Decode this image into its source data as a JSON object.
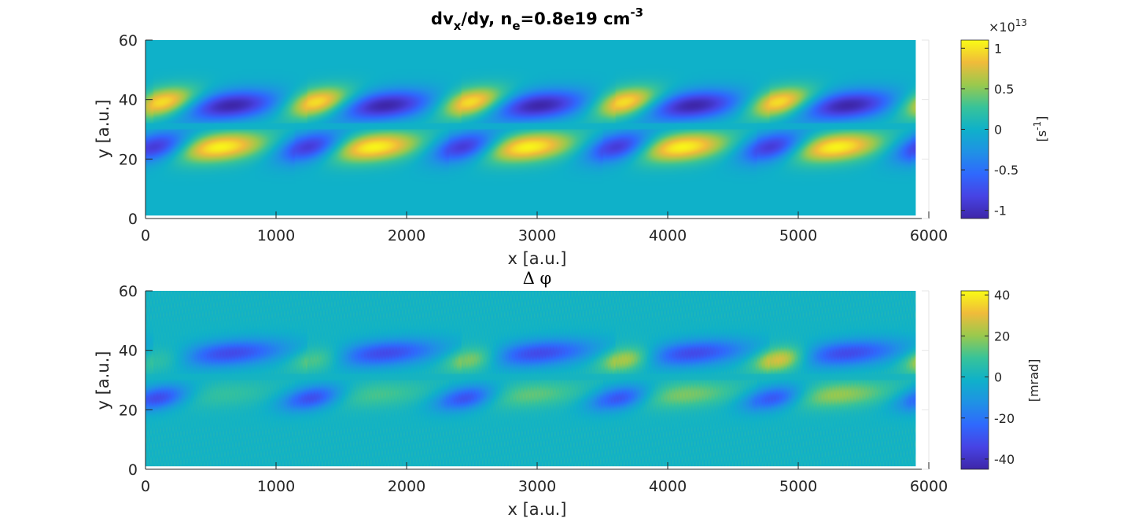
{
  "chart_data": [
    {
      "type": "heatmap",
      "title": "dv_x/dy, n_e=0.8e19 cm^-3",
      "title_parts": {
        "t1": "dv",
        "t2": "x",
        "t3": "/dy, n",
        "t4": "e",
        "t5": "=0.8e19 cm",
        "t6": "-3"
      },
      "xlabel": "x [a.u.]",
      "ylabel": "y [a.u.]",
      "xlim": [
        0,
        6000
      ],
      "ylim": [
        0,
        60
      ],
      "x_ticks": [
        "0",
        "1000",
        "2000",
        "3000",
        "4000",
        "5000",
        "6000"
      ],
      "y_ticks": [
        "0",
        "20",
        "40",
        "60"
      ],
      "data_x_extent": [
        0,
        5900
      ],
      "data_y_extent": [
        1,
        60
      ],
      "colormap": "parula",
      "clim": [
        -11000000000000.0,
        11000000000000.0
      ],
      "colorbar": {
        "ticks": [
          "-1",
          "-0.5",
          "0",
          "0.5",
          "1"
        ],
        "tick_values": [
          -1,
          -0.5,
          0,
          0.5,
          1
        ],
        "range": [
          -1.1,
          1.1
        ],
        "exponent_label": "×10",
        "exponent_power": "13",
        "label_main": "[s",
        "label_sup": "-1",
        "label_end": "]"
      },
      "pattern": {
        "period_x": 1180,
        "upper_band_y": [
          32,
          46
        ],
        "lower_band_y": [
          16,
          30
        ],
        "upper_positive_center_x": 150,
        "upper_negative_center_x": 650,
        "lower_negative_center_x": 100,
        "lower_positive_center_x": 550,
        "peak_value": 1.1
      }
    },
    {
      "type": "heatmap",
      "title": "Δ φ",
      "xlabel": "x [a.u.]",
      "ylabel": "y [a.u.]",
      "xlim": [
        0,
        6000
      ],
      "ylim": [
        0,
        60
      ],
      "x_ticks": [
        "0",
        "1000",
        "2000",
        "3000",
        "4000",
        "5000",
        "6000"
      ],
      "y_ticks": [
        "0",
        "20",
        "40",
        "60"
      ],
      "data_x_extent": [
        0,
        5900
      ],
      "data_y_extent": [
        1,
        60
      ],
      "colormap": "parula",
      "clim": [
        -45,
        42
      ],
      "colorbar": {
        "ticks": [
          "-40",
          "-20",
          "0",
          "20",
          "40"
        ],
        "tick_values": [
          -40,
          -20,
          0,
          20,
          40
        ],
        "range": [
          -45,
          42
        ],
        "label": "[mrad]"
      },
      "pattern": {
        "period_x": 1180,
        "upper_negative_center_x": 650,
        "upper_positive_center_x": 150,
        "lower_negative_center_x": 100,
        "lower_positive_center_x": 550,
        "negative_peak_mrad": -40,
        "positive_peak_mrad_start": 12,
        "positive_peak_mrad_end": 40
      }
    }
  ]
}
